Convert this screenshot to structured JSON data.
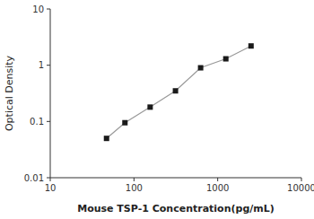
{
  "chart_data": {
    "type": "line",
    "xlabel": "Mouse TSP-1 Concentration(pg/mL)",
    "ylabel": "Optical Density",
    "x": [
      47,
      78,
      156,
      313,
      625,
      1250,
      2500
    ],
    "series": [
      {
        "values": [
          0.05,
          0.095,
          0.18,
          0.35,
          0.9,
          1.3,
          2.2
        ],
        "color": "#1a1a1a",
        "marker": "square"
      }
    ],
    "color": "#999999",
    "line_style": "solid",
    "xlim": [
      10,
      10000
    ],
    "ylim": [
      0.01,
      10
    ],
    "xticks": [
      10,
      100,
      1000,
      10000
    ],
    "yticks": [
      0.01,
      0.1,
      1,
      10
    ],
    "log": true,
    "grid": false
  }
}
